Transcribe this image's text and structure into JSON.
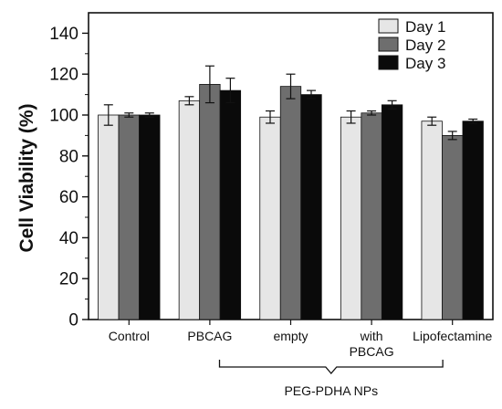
{
  "chart_data": {
    "type": "bar",
    "ylabel": "Cell Viability (%)",
    "xlabel": "",
    "ylim": [
      0,
      150
    ],
    "yticks": [
      0,
      20,
      40,
      60,
      80,
      100,
      120,
      140
    ],
    "categories": [
      "Control",
      "PBCAG",
      "empty",
      "with\nPBCAG",
      "Lipofectamine"
    ],
    "category_lines": [
      [
        "Control"
      ],
      [
        "PBCAG"
      ],
      [
        "empty"
      ],
      [
        "with",
        "PBCAG"
      ],
      [
        "Lipofectamine"
      ]
    ],
    "group_bracket": {
      "label": "PEG-PDHA NPs",
      "categories": [
        "empty",
        "with\nPBCAG"
      ]
    },
    "legend_position": "top-right",
    "series": [
      {
        "name": "Day 1",
        "color": "#e6e6e6",
        "values": [
          100,
          107,
          99,
          99,
          97
        ],
        "errors": [
          5,
          2,
          3,
          3,
          2
        ]
      },
      {
        "name": "Day 2",
        "color": "#6e6e6e",
        "values": [
          100,
          115,
          114,
          101,
          90
        ],
        "errors": [
          1,
          9,
          6,
          1,
          2
        ]
      },
      {
        "name": "Day 3",
        "color": "#0a0a0a",
        "values": [
          100,
          112,
          110,
          105,
          97
        ],
        "errors": [
          1,
          6,
          2,
          2,
          1
        ]
      }
    ]
  }
}
